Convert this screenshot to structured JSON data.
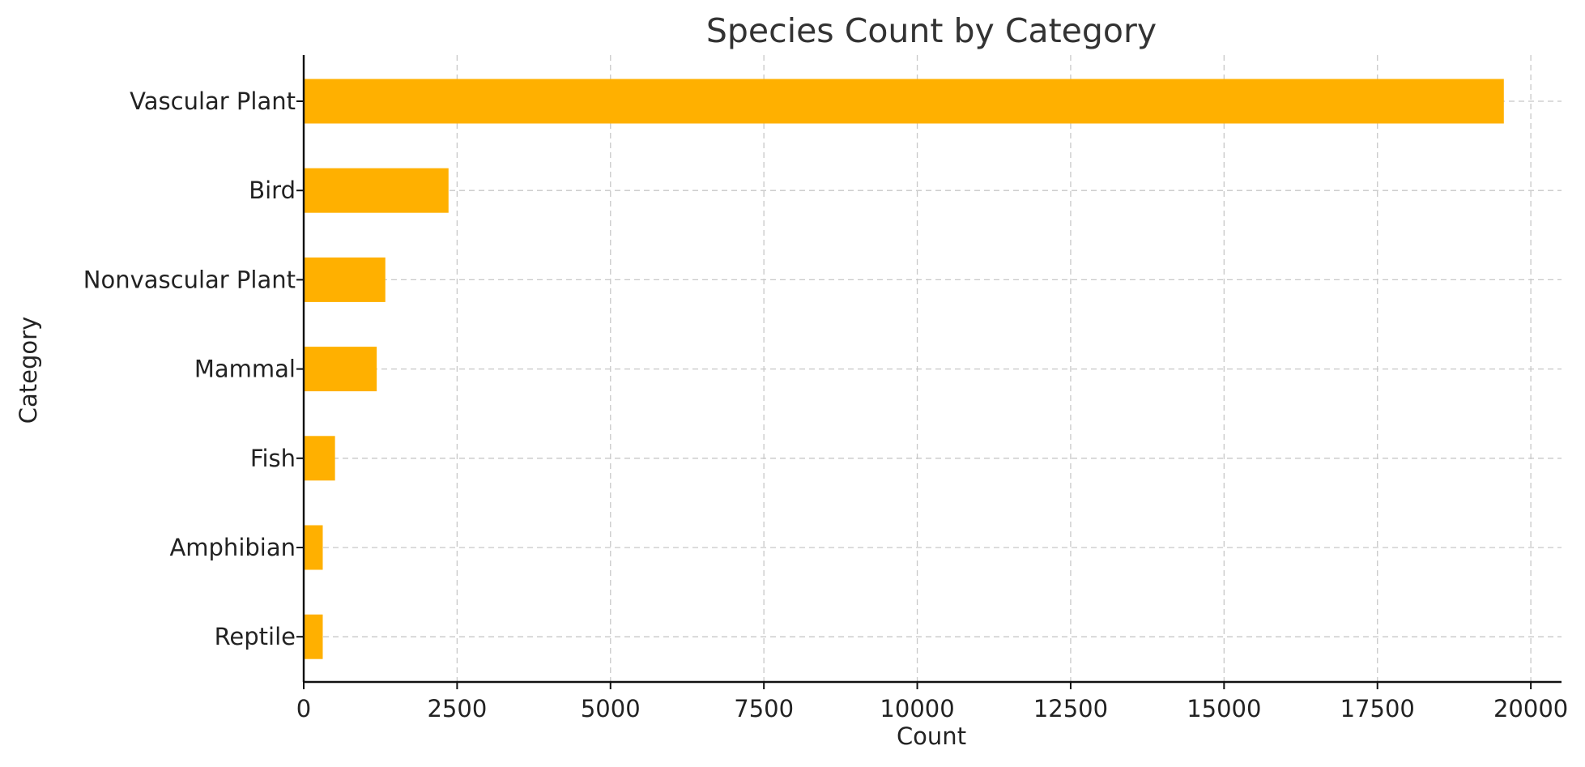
{
  "chart_data": {
    "type": "bar",
    "orientation": "horizontal",
    "title": "Species Count by Category",
    "xlabel": "Count",
    "ylabel": "Category",
    "categories": [
      "Vascular Plant",
      "Bird",
      "Nonvascular Plant",
      "Mammal",
      "Fish",
      "Amphibian",
      "Reptile"
    ],
    "values": [
      19560,
      2360,
      1330,
      1190,
      510,
      310,
      310
    ],
    "xlim": [
      0,
      20500
    ],
    "xticks": [
      "0",
      "2500",
      "5000",
      "7500",
      "10000",
      "12500",
      "15000",
      "17500",
      "20000"
    ],
    "grid": true,
    "bar_color": "#FFB000"
  }
}
